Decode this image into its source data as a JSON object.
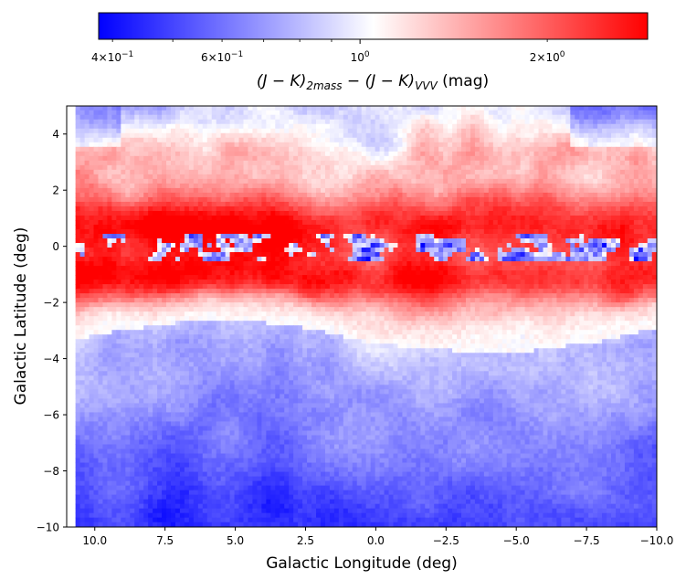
{
  "chart_data": {
    "type": "heatmap",
    "colormap": "bwr",
    "colorbar": {
      "orientation": "horizontal",
      "placement": "top",
      "scale": "log",
      "range": [
        0.38,
        2.9
      ],
      "major_ticks": [
        {
          "value": 1.0,
          "base": "10",
          "exp": "0"
        }
      ],
      "minor_tick_values": [
        0.4,
        0.5,
        0.6,
        0.7,
        0.8,
        0.9,
        2.0
      ],
      "labeled_ticks": [
        {
          "value": 0.4,
          "mant": "4",
          "base": "10",
          "exp": "−1"
        },
        {
          "value": 0.6,
          "mant": "6",
          "base": "10",
          "exp": "−1"
        },
        {
          "value": 2.0,
          "mant": "2",
          "base": "10",
          "exp": "0"
        }
      ],
      "label": {
        "part1": "(J − K)",
        "sub1": "2mass",
        "part2": " − (J − K)",
        "sub2": "VVV",
        "part3": " (mag)"
      }
    },
    "xlabel": "Galactic Longitude (deg)",
    "ylabel": "Galactic Latitude (deg)",
    "xlim": [
      11.0,
      -10.0
    ],
    "ylim": [
      -10,
      5
    ],
    "xticks": [
      10.0,
      7.5,
      5.0,
      2.5,
      0.0,
      -2.5,
      -5.0,
      -7.5,
      -10.0
    ],
    "xtick_labels": [
      "10.0",
      "7.5",
      "5.0",
      "2.5",
      "0.0",
      "−2.5",
      "−5.0",
      "−7.5",
      "−10.0"
    ],
    "yticks": [
      4,
      2,
      0,
      -2,
      -4,
      -6,
      -8,
      -10
    ],
    "ytick_labels": [
      "4",
      "2",
      "0",
      "−2",
      "−4",
      "−6",
      "−8",
      "−10"
    ],
    "structure": {
      "red_band_upper_center_deg": 0.6,
      "red_band_lower_center_deg": -1.2,
      "plane_mixed_center_deg": -0.1,
      "bulge_outline_lat_deg": [
        {
          "l": 11.0,
          "b": -3.4
        },
        {
          "l": 9.0,
          "b": -3.0
        },
        {
          "l": 6.0,
          "b": -2.6
        },
        {
          "l": 3.0,
          "b": -2.8
        },
        {
          "l": 0.5,
          "b": -3.4
        },
        {
          "l": -2.0,
          "b": -3.7
        },
        {
          "l": -5.0,
          "b": -3.8
        },
        {
          "l": -8.0,
          "b": -3.4
        },
        {
          "l": -10.0,
          "b": -2.9
        }
      ],
      "far_high_lat_value": 0.48,
      "bulge_center_value": 0.85,
      "band_peak_value": 2.8
    }
  }
}
